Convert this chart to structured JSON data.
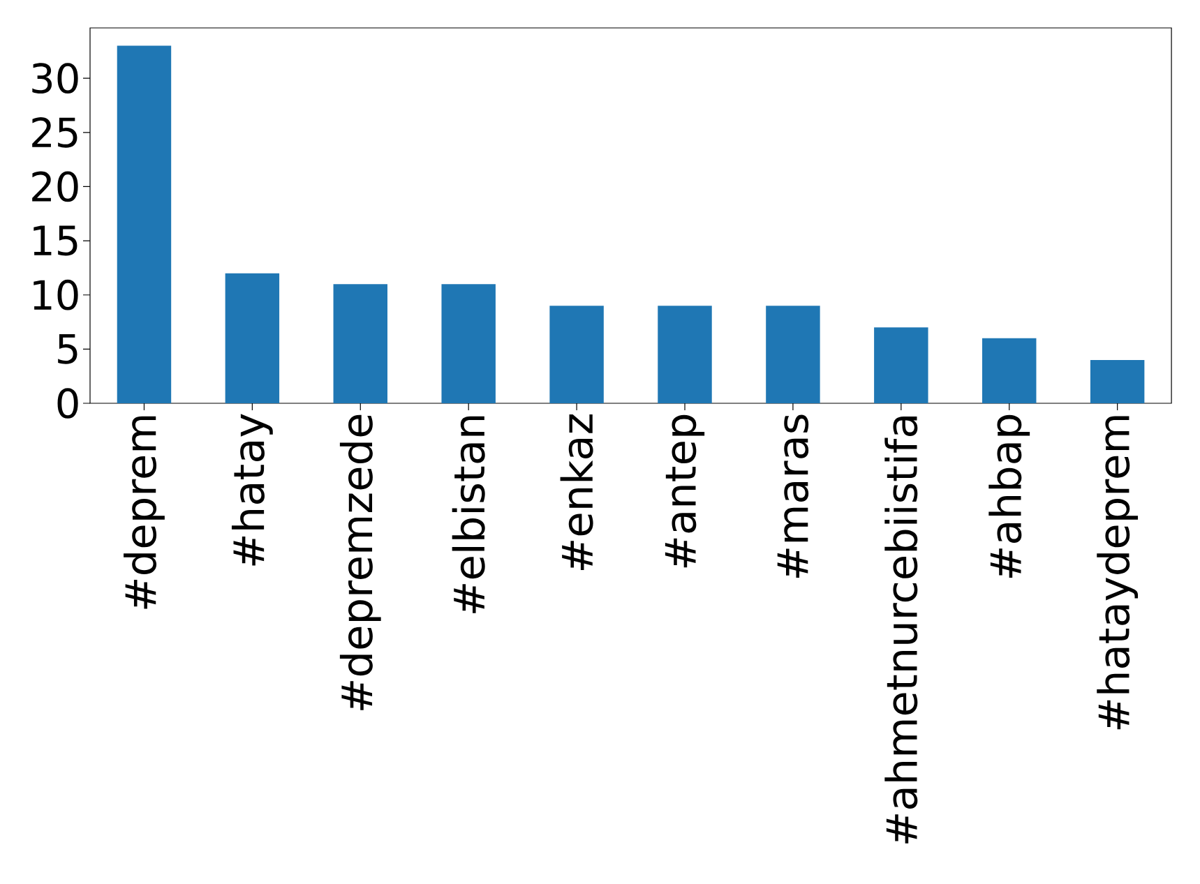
{
  "chart_data": {
    "type": "bar",
    "categories": [
      "#deprem",
      "#hatay",
      "#depremzede",
      "#elbistan",
      "#enkaz",
      "#antep",
      "#maras",
      "#ahmetnurcebiistifa",
      "#ahbap",
      "#hataydeprem"
    ],
    "values": [
      33,
      12,
      11,
      11,
      9,
      9,
      9,
      7,
      6,
      4
    ],
    "color": "#1f77b4",
    "ylim": [
      0,
      34.65
    ],
    "yticks": [
      0,
      5,
      10,
      15,
      20,
      25,
      30
    ]
  }
}
